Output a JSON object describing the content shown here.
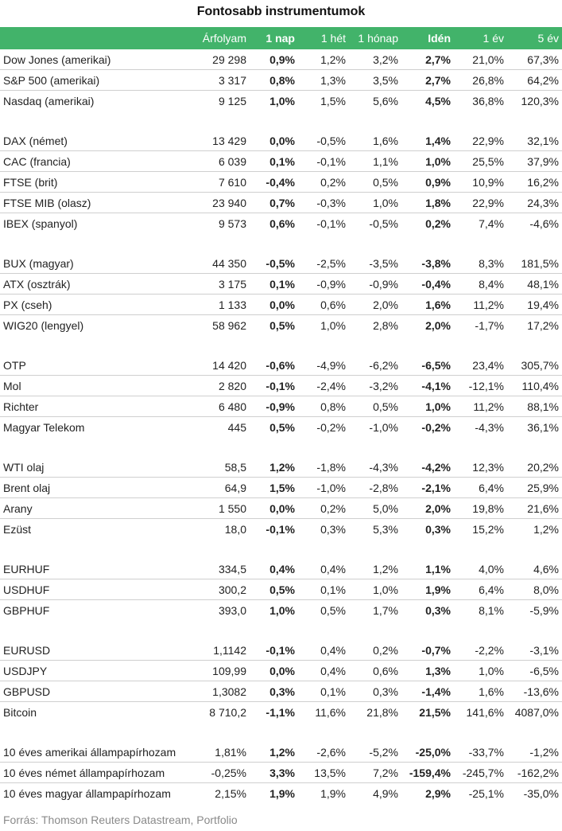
{
  "title": "Fontosabb instrumentumok",
  "header": [
    "",
    "Árfolyam",
    "1 nap",
    "1 hét",
    "1 hónap",
    "Idén",
    "1 év",
    "5 év"
  ],
  "groups": [
    [
      [
        "Dow Jones (amerikai)",
        "29 298",
        "0,9%",
        "1,2%",
        "3,2%",
        "2,7%",
        "21,0%",
        "67,3%"
      ],
      [
        "S&P 500 (amerikai)",
        "3 317",
        "0,8%",
        "1,3%",
        "3,5%",
        "2,7%",
        "26,8%",
        "64,2%"
      ],
      [
        "Nasdaq (amerikai)",
        "9 125",
        "1,0%",
        "1,5%",
        "5,6%",
        "4,5%",
        "36,8%",
        "120,3%"
      ]
    ],
    [
      [
        "DAX (német)",
        "13 429",
        "0,0%",
        "-0,5%",
        "1,6%",
        "1,4%",
        "22,9%",
        "32,1%"
      ],
      [
        "CAC (francia)",
        "6 039",
        "0,1%",
        "-0,1%",
        "1,1%",
        "1,0%",
        "25,5%",
        "37,9%"
      ],
      [
        "FTSE (brit)",
        "7 610",
        "-0,4%",
        "0,2%",
        "0,5%",
        "0,9%",
        "10,9%",
        "16,2%"
      ],
      [
        "FTSE MIB (olasz)",
        "23 940",
        "0,7%",
        "-0,3%",
        "1,0%",
        "1,8%",
        "22,9%",
        "24,3%"
      ],
      [
        "IBEX (spanyol)",
        "9 573",
        "0,6%",
        "-0,1%",
        "-0,5%",
        "0,2%",
        "7,4%",
        "-4,6%"
      ]
    ],
    [
      [
        "BUX (magyar)",
        "44 350",
        "-0,5%",
        "-2,5%",
        "-3,5%",
        "-3,8%",
        "8,3%",
        "181,5%"
      ],
      [
        "ATX (osztrák)",
        "3 175",
        "0,1%",
        "-0,9%",
        "-0,9%",
        "-0,4%",
        "8,4%",
        "48,1%"
      ],
      [
        "PX (cseh)",
        "1 133",
        "0,0%",
        "0,6%",
        "2,0%",
        "1,6%",
        "11,2%",
        "19,4%"
      ],
      [
        "WIG20 (lengyel)",
        "58 962",
        "0,5%",
        "1,0%",
        "2,8%",
        "2,0%",
        "-1,7%",
        "17,2%"
      ]
    ],
    [
      [
        "OTP",
        "14 420",
        "-0,6%",
        "-4,9%",
        "-6,2%",
        "-6,5%",
        "23,4%",
        "305,7%"
      ],
      [
        "Mol",
        "2 820",
        "-0,1%",
        "-2,4%",
        "-3,2%",
        "-4,1%",
        "-12,1%",
        "110,4%"
      ],
      [
        "Richter",
        "6 480",
        "-0,9%",
        "0,8%",
        "0,5%",
        "1,0%",
        "11,2%",
        "88,1%"
      ],
      [
        "Magyar Telekom",
        "445",
        "0,5%",
        "-0,2%",
        "-1,0%",
        "-0,2%",
        "-4,3%",
        "36,1%"
      ]
    ],
    [
      [
        "WTI olaj",
        "58,5",
        "1,2%",
        "-1,8%",
        "-4,3%",
        "-4,2%",
        "12,3%",
        "20,2%"
      ],
      [
        "Brent olaj",
        "64,9",
        "1,5%",
        "-1,0%",
        "-2,8%",
        "-2,1%",
        "6,4%",
        "25,9%"
      ],
      [
        "Arany",
        "1 550",
        "0,0%",
        "0,2%",
        "5,0%",
        "2,0%",
        "19,8%",
        "21,6%"
      ],
      [
        "Ezüst",
        "18,0",
        "-0,1%",
        "0,3%",
        "5,3%",
        "0,3%",
        "15,2%",
        "1,2%"
      ]
    ],
    [
      [
        "EURHUF",
        "334,5",
        "0,4%",
        "0,4%",
        "1,2%",
        "1,1%",
        "4,0%",
        "4,6%"
      ],
      [
        "USDHUF",
        "300,2",
        "0,5%",
        "0,1%",
        "1,0%",
        "1,9%",
        "6,4%",
        "8,0%"
      ],
      [
        "GBPHUF",
        "393,0",
        "1,0%",
        "0,5%",
        "1,7%",
        "0,3%",
        "8,1%",
        "-5,9%"
      ]
    ],
    [
      [
        "EURUSD",
        "1,1142",
        "-0,1%",
        "0,4%",
        "0,2%",
        "-0,7%",
        "-2,2%",
        "-3,1%"
      ],
      [
        "USDJPY",
        "109,99",
        "0,0%",
        "0,4%",
        "0,6%",
        "1,3%",
        "1,0%",
        "-6,5%"
      ],
      [
        "GBPUSD",
        "1,3082",
        "0,3%",
        "0,1%",
        "0,3%",
        "-1,4%",
        "1,6%",
        "-13,6%"
      ],
      [
        "Bitcoin",
        "8 710,2",
        "-1,1%",
        "11,6%",
        "21,8%",
        "21,5%",
        "141,6%",
        "4087,0%"
      ]
    ],
    [
      [
        "10 éves amerikai állampapírhozam",
        "1,81%",
        "1,2%",
        "-2,6%",
        "-5,2%",
        "-25,0%",
        "-33,7%",
        "-1,2%"
      ],
      [
        "10 éves német állampapírhozam",
        "-0,25%",
        "3,3%",
        "13,5%",
        "7,2%",
        "-159,4%",
        "-245,7%",
        "-162,2%"
      ],
      [
        "10 éves magyar állampapírhozam",
        "2,15%",
        "1,9%",
        "1,9%",
        "4,9%",
        "2,9%",
        "-25,1%",
        "-35,0%"
      ]
    ]
  ],
  "source": "Forrás: Thomson Reuters Datastream, Portfolio",
  "colors": {
    "header_bg": "#42b36a",
    "header_text": "#ffffff",
    "row_divider": "#cfcfcf",
    "source_text": "#8a8a8a"
  }
}
